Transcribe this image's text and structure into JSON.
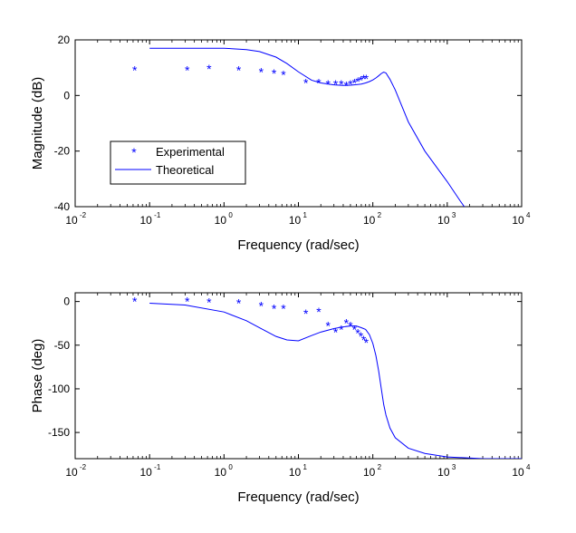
{
  "chart_data": [
    {
      "type": "line",
      "xscale": "log",
      "xlim": [
        0.01,
        10000
      ],
      "ylim": [
        -40,
        20
      ],
      "xticks": [
        0.01,
        0.1,
        1,
        10,
        100,
        1000,
        10000
      ],
      "xtick_labels": [
        {
          "base": "10",
          "exp": "-2"
        },
        {
          "base": "10",
          "exp": "-1"
        },
        {
          "base": "10",
          "exp": "0"
        },
        {
          "base": "10",
          "exp": "1"
        },
        {
          "base": "10",
          "exp": "2"
        },
        {
          "base": "10",
          "exp": "3"
        },
        {
          "base": "10",
          "exp": "4"
        }
      ],
      "yticks": [
        20,
        0,
        -20,
        -40
      ],
      "ytick_labels": [
        "20",
        "0",
        "-20",
        "-40"
      ],
      "xlabel": "Frequency (rad/sec)",
      "ylabel": "Magnitude (dB)",
      "legend_position": "lower-left",
      "series": [
        {
          "name": "Experimental",
          "style": "markers",
          "marker": "*",
          "color": "#0000ff",
          "x": [
            0.063,
            0.32,
            0.63,
            1.58,
            3.16,
            4.7,
            6.3,
            12.6,
            18.8,
            25,
            31.6,
            37.7,
            44,
            50,
            56.5,
            62.8,
            69,
            75.4,
            81.6
          ],
          "y": [
            9,
            9,
            9.5,
            9,
            8.5,
            8,
            7.5,
            4.5,
            4.5,
            4,
            4,
            4,
            3.5,
            4,
            4.5,
            5,
            5.5,
            6,
            6
          ]
        },
        {
          "name": "Theoretical",
          "style": "line",
          "color": "#0000ff",
          "x": [
            0.1,
            0.3,
            1,
            2,
            3,
            5,
            7,
            10,
            15,
            20,
            30,
            40,
            50,
            60,
            70,
            80,
            90,
            100,
            110,
            120,
            130,
            140,
            150,
            170,
            200,
            300,
            500,
            1000,
            1500,
            1800
          ],
          "y": [
            17,
            17,
            17,
            16.5,
            15.8,
            13.8,
            11.5,
            8.5,
            5.5,
            4.5,
            3.8,
            3.6,
            3.7,
            3.9,
            4.1,
            4.5,
            5.0,
            5.6,
            6.3,
            7.1,
            7.9,
            8.4,
            8.1,
            5.8,
            2.0,
            -9.5,
            -20,
            -31,
            -38,
            -41
          ]
        }
      ]
    },
    {
      "type": "line",
      "xscale": "log",
      "xlim": [
        0.01,
        10000
      ],
      "ylim": [
        -180,
        10
      ],
      "xticks": [
        0.01,
        0.1,
        1,
        10,
        100,
        1000,
        10000
      ],
      "xtick_labels": [
        {
          "base": "10",
          "exp": "-2"
        },
        {
          "base": "10",
          "exp": "-1"
        },
        {
          "base": "10",
          "exp": "0"
        },
        {
          "base": "10",
          "exp": "1"
        },
        {
          "base": "10",
          "exp": "2"
        },
        {
          "base": "10",
          "exp": "3"
        },
        {
          "base": "10",
          "exp": "4"
        }
      ],
      "yticks": [
        0,
        -50,
        -100,
        -150
      ],
      "ytick_labels": [
        "0",
        "-50",
        "-100",
        "-150"
      ],
      "xlabel": "Frequency (rad/sec)",
      "ylabel": "Phase (deg)",
      "series": [
        {
          "style": "markers",
          "marker": "*",
          "color": "#0000ff",
          "x": [
            0.063,
            0.32,
            0.63,
            1.58,
            3.16,
            4.7,
            6.3,
            12.6,
            18.8,
            25,
            31.6,
            37.7,
            44,
            50,
            56.5,
            62.8,
            69,
            75.4,
            81.6
          ],
          "y": [
            0,
            0,
            -1,
            -2,
            -5,
            -8,
            -8,
            -14,
            -12,
            -28,
            -35,
            -32,
            -25,
            -28,
            -32,
            -36,
            -40,
            -44,
            -47
          ]
        },
        {
          "style": "line",
          "color": "#0000ff",
          "x": [
            0.1,
            0.3,
            1,
            2,
            3,
            5,
            7,
            10,
            15,
            20,
            30,
            40,
            50,
            60,
            70,
            80,
            90,
            100,
            110,
            120,
            130,
            140,
            150,
            170,
            200,
            300,
            500,
            1000,
            3000,
            10000
          ],
          "y": [
            -2,
            -4,
            -12,
            -22,
            -30,
            -40,
            -44,
            -45,
            -39,
            -35,
            -31,
            -29,
            -28,
            -28,
            -30,
            -32,
            -38,
            -48,
            -62,
            -80,
            -100,
            -118,
            -130,
            -145,
            -156,
            -168,
            -174,
            -178,
            -180,
            -180
          ]
        }
      ]
    }
  ]
}
